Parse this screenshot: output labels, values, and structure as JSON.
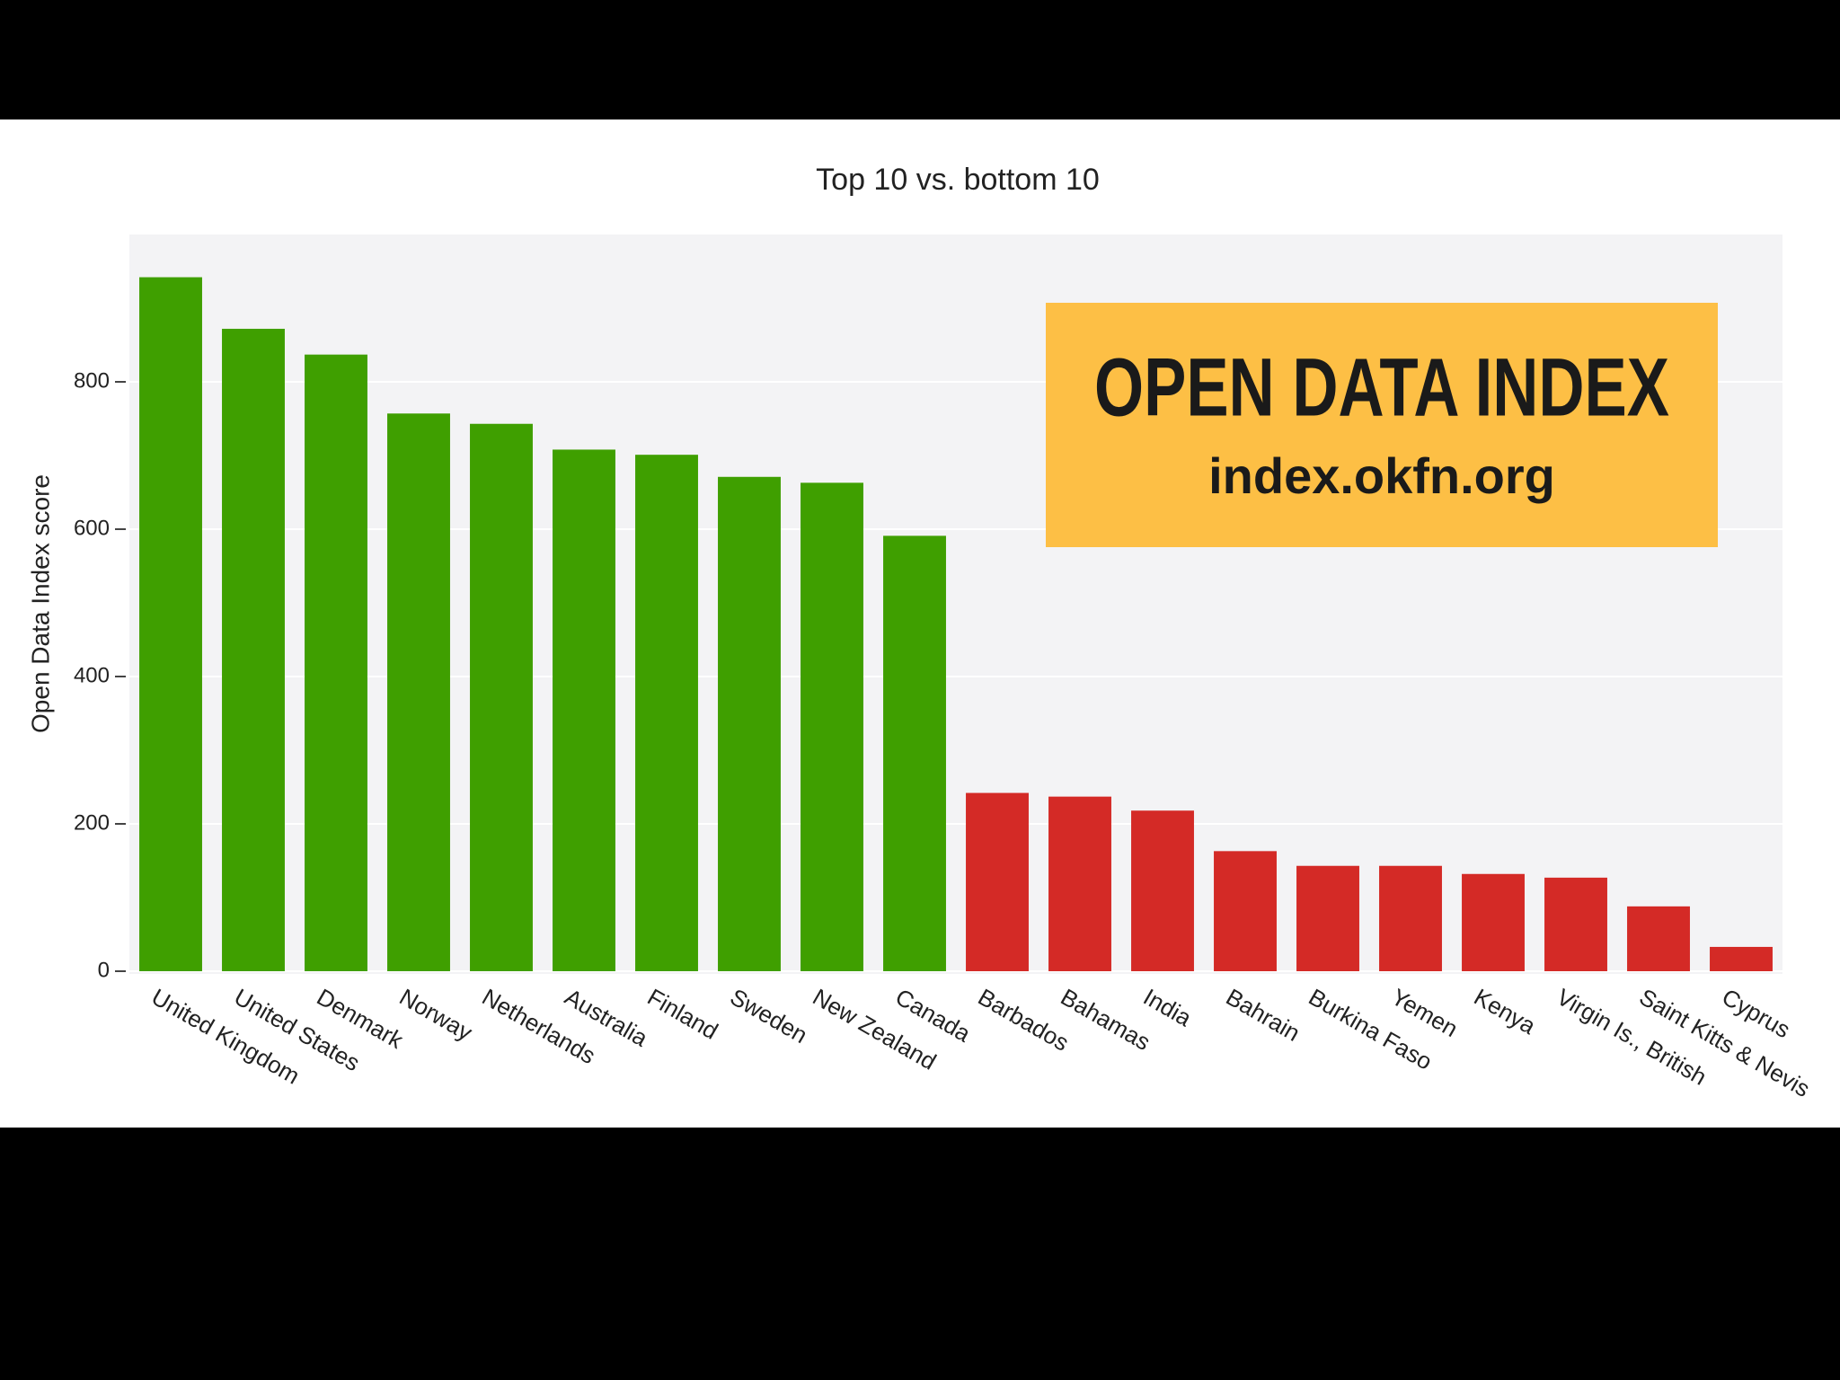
{
  "chart_data": {
    "type": "bar",
    "title": "Top 10 vs. bottom 10",
    "y_label": "Open Data Index score",
    "categories": [
      "United Kingdom",
      "United States",
      "Denmark",
      "Norway",
      "Netherlands",
      "Australia",
      "Finland",
      "Sweden",
      "New Zealand",
      "Canada",
      "Barbados",
      "Bahamas",
      "India",
      "Bahrain",
      "Burkina Faso",
      "Yemen",
      "Kenya",
      "Virgin Is., British",
      "Saint Kitts & Nevis",
      "Cyprus"
    ],
    "values": [
      942,
      872,
      837,
      757,
      743,
      708,
      701,
      671,
      663,
      591,
      242,
      237,
      218,
      163,
      143,
      143,
      132,
      127,
      88,
      33
    ],
    "colors": [
      "#3f9f00",
      "#3f9f00",
      "#3f9f00",
      "#3f9f00",
      "#3f9f00",
      "#3f9f00",
      "#3f9f00",
      "#3f9f00",
      "#3f9f00",
      "#3f9f00",
      "#d42a26",
      "#d42a26",
      "#d42a26",
      "#d42a26",
      "#d42a26",
      "#d42a26",
      "#d42a26",
      "#d42a26",
      "#d42a26",
      "#d42a26"
    ],
    "ylim": [
      0,
      1000
    ],
    "yticks": [
      0,
      200,
      400,
      600,
      800
    ],
    "grid": true,
    "annotations": [
      "OPEN DATA INDEX",
      "index.okfn.org"
    ]
  }
}
